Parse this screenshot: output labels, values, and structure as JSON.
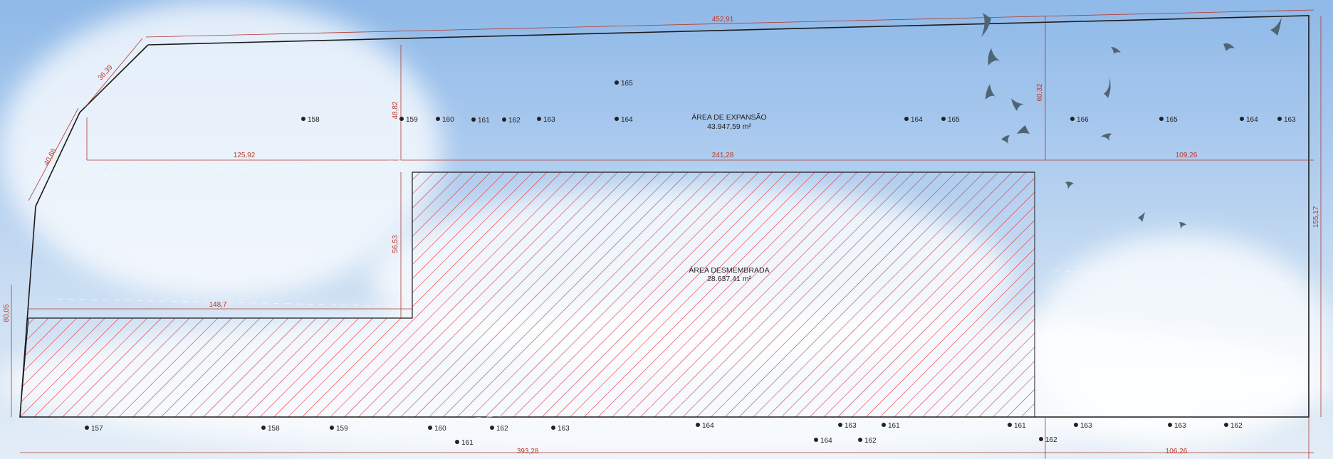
{
  "areas": {
    "expansion": {
      "title": "ÁREA DE EXPANSÃO",
      "value": "43.947,59 m²"
    },
    "dismembered": {
      "title": "ÁREA DESMEMBRADA",
      "value": "28.637,41 m²"
    }
  },
  "dimensions": {
    "top_total": "452,91",
    "left_diag_upper": "36,39",
    "left_diag_lower": "40,68",
    "left_inner_vertical": "48,82",
    "right_inner_vertical": "60,32",
    "mid_left": "125,92",
    "mid_center": "241,28",
    "mid_right": "109,26",
    "right_side": "155,17",
    "notch_vertical": "56,53",
    "notch_horizontal": "148,7",
    "left_side": "80,05",
    "bottom_left": "393,28",
    "bottom_right": "106,26"
  },
  "markers": {
    "m1": "158",
    "m2": "159",
    "m3": "160",
    "m4": "161",
    "m5": "162",
    "m6": "163",
    "m7": "164",
    "m8": "165",
    "m9": "164",
    "m10": "165",
    "m11": "166",
    "m12": "165",
    "m13": "164",
    "m14": "163",
    "b1": "157",
    "b2": "158",
    "b3": "159",
    "b4": "160",
    "b5": "161",
    "b6": "162",
    "b7": "163",
    "b8": "164",
    "b9": "164",
    "b10": "163",
    "b11": "162",
    "b12": "161",
    "b13": "161",
    "b14": "162",
    "b15": "163",
    "b16": "163",
    "b17": "162"
  },
  "colors": {
    "boundary": "#1a1a1a",
    "hatch": "#d9242b",
    "dimension": "#b03a2e",
    "sky": "#a9c9ee"
  }
}
